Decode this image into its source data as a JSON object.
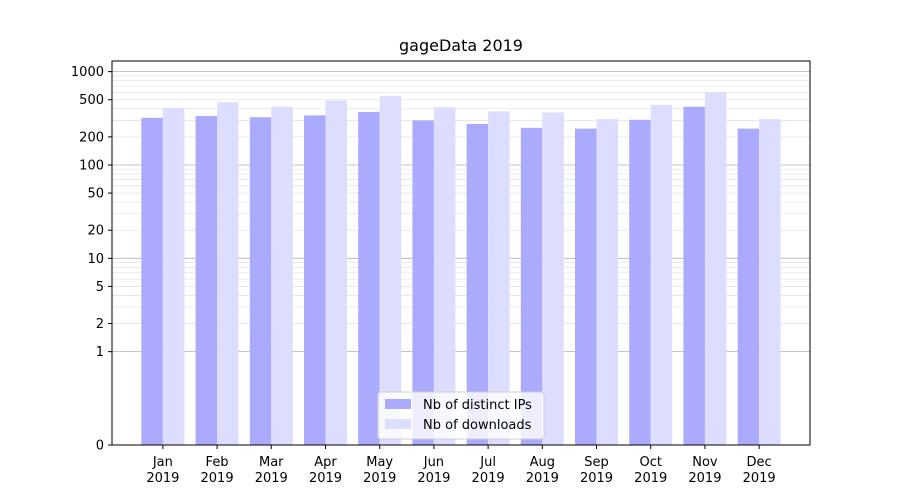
{
  "chart_data": {
    "type": "bar",
    "title": "gageData 2019",
    "xlabel": "",
    "ylabel": "",
    "yscale": "symlog",
    "ylim": [
      0,
      1300
    ],
    "y_ticks": [
      0,
      1,
      2,
      5,
      10,
      20,
      50,
      100,
      200,
      500,
      1000
    ],
    "y_tick_labels": [
      "0",
      "1",
      "2",
      "5",
      "10",
      "20",
      "50",
      "100",
      "200",
      "500",
      "1000"
    ],
    "grid": true,
    "legend_position": "bottom-center",
    "categories": [
      "Jan\n2019",
      "Feb\n2019",
      "Mar\n2019",
      "Apr\n2019",
      "May\n2019",
      "Jun\n2019",
      "Jul\n2019",
      "Aug\n2019",
      "Sep\n2019",
      "Oct\n2019",
      "Nov\n2019",
      "Dec\n2019"
    ],
    "series": [
      {
        "name": "Nb of distinct IPs",
        "color": "#aaaaff",
        "values": [
          320,
          335,
          325,
          340,
          370,
          300,
          275,
          250,
          245,
          305,
          420,
          245
        ]
      },
      {
        "name": "Nb of downloads",
        "color": "#ddddff",
        "values": [
          410,
          470,
          420,
          490,
          550,
          415,
          375,
          365,
          310,
          440,
          600,
          310
        ]
      }
    ]
  }
}
